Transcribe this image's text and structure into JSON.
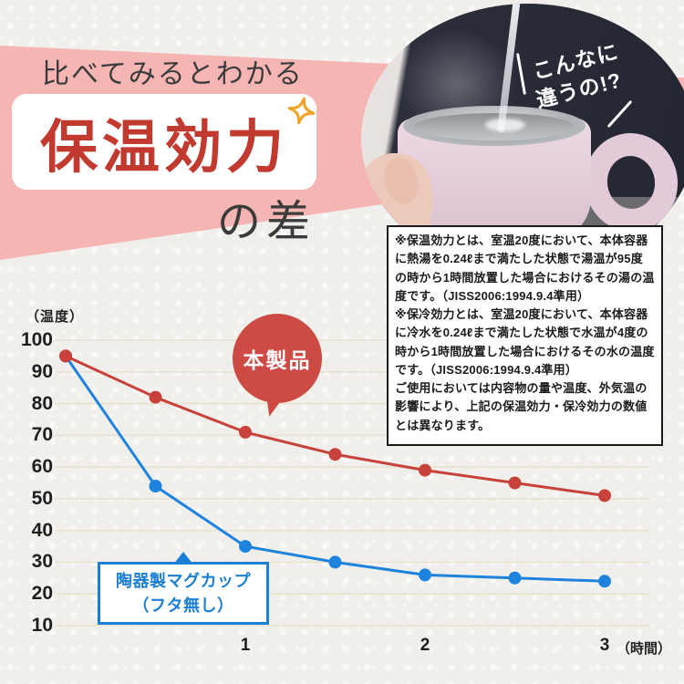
{
  "page": {
    "background": "#f1efec"
  },
  "header": {
    "tagline": "比べてみるとわかる",
    "title": "保温効力",
    "suffix": "の差",
    "banner_color": "#f4b5b3",
    "title_color": "#c2392f",
    "sparkle_color": "#f0a326"
  },
  "photo": {
    "description": "pink-mug-being-filled-with-hot-water",
    "caption_line1": "こんなに",
    "caption_line2": "違うの!?"
  },
  "note_box": {
    "lines": [
      "※保温効力とは、室温20度において、本体容器に熱湯を0.24ℓまで満たした状態で湯温が95度の時から1時間放置した場合におけるその湯の温度です。（JISS2006:1994.9.4準用）",
      "※保冷効力とは、室温20度において、本体容器に冷水を0.24ℓまで満たした状態で水温が4度の時から1時間放置した場合におけるその水の温度です。（JISS2006:1994.9.4準用）",
      "ご使用においては内容物の量や温度、外気温の影響により、上記の保温効力・保冷効力の数値とは異なります。"
    ]
  },
  "chart_data": {
    "type": "line",
    "title": "保温効力の差（本製品 vs 陶器製マグカップ）",
    "ylabel": "（温度）",
    "xlabel": "（時間）",
    "x": [
      0,
      0.5,
      1,
      1.5,
      2,
      2.5,
      3
    ],
    "x_tick_values": [
      1,
      2,
      3
    ],
    "x_tick_labels": [
      "1",
      "2",
      "3"
    ],
    "y_ticks": [
      10,
      20,
      30,
      40,
      50,
      60,
      70,
      80,
      90,
      100
    ],
    "ylim": [
      10,
      100
    ],
    "grid": "horizontal-only",
    "grid_color": "#e8e2cf",
    "legend": "inline-annotations",
    "series": [
      {
        "name": "本製品",
        "color": "#c8413a",
        "values": [
          95,
          82,
          71,
          64,
          59,
          55,
          51
        ]
      },
      {
        "name": "陶器製マグカップ（フタ無し）",
        "color": "#1e83dc",
        "values": [
          95,
          54,
          35,
          30,
          26,
          25,
          24
        ]
      }
    ]
  },
  "annotations": {
    "product_label": "本製品",
    "product_balloon_color": "#ce4a44",
    "mug_label_line1": "陶器製マグカップ",
    "mug_label_line2": "（フタ無し）",
    "mug_label_color": "#1b7fd6"
  }
}
